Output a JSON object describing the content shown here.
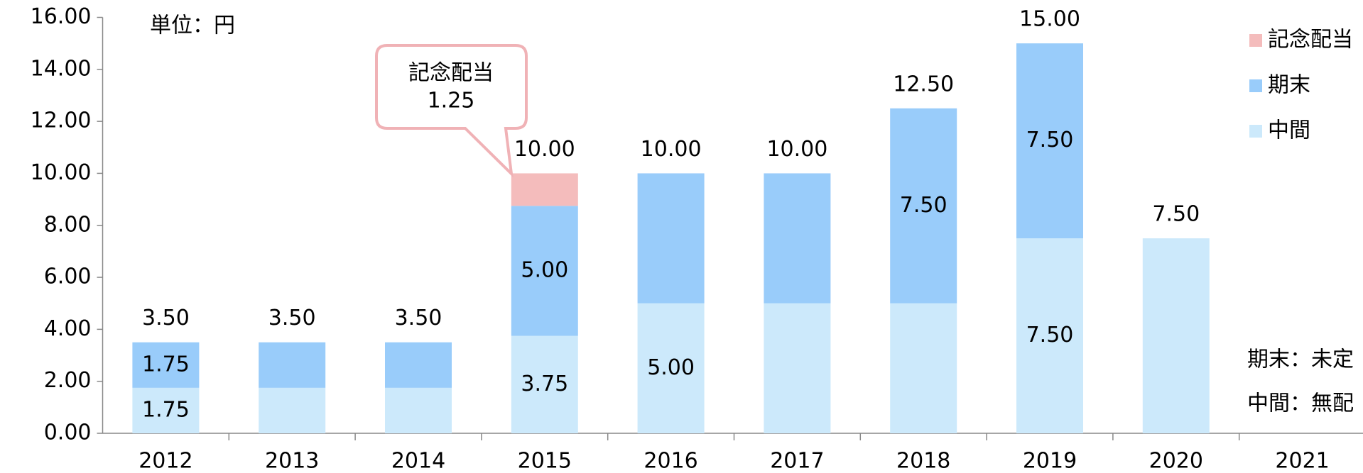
{
  "chart_data": {
    "type": "bar",
    "stacked": true,
    "subtitle": "単位：円",
    "categories": [
      "2012",
      "2013",
      "2014",
      "2015",
      "2016",
      "2017",
      "2018",
      "2019",
      "2020",
      "2021"
    ],
    "series": [
      {
        "name": "中間",
        "color": "#cce9fb",
        "values": [
          1.75,
          1.75,
          1.75,
          3.75,
          5,
          5,
          5,
          7.5,
          7.5,
          null
        ],
        "value_labels": [
          "1.75",
          null,
          null,
          "3.75",
          "5.00",
          null,
          null,
          "7.50",
          null,
          null
        ]
      },
      {
        "name": "期末",
        "color": "#99ccfa",
        "values": [
          1.75,
          1.75,
          1.75,
          5,
          5,
          5,
          7.5,
          7.5,
          null,
          null
        ],
        "value_labels": [
          "1.75",
          null,
          null,
          "5.00",
          null,
          null,
          "7.50",
          "7.50",
          null,
          null
        ]
      },
      {
        "name": "記念配当",
        "color": "#f4bcbc",
        "values": [
          null,
          null,
          null,
          1.25,
          null,
          null,
          null,
          null,
          null,
          null
        ],
        "value_labels": [
          null,
          null,
          null,
          null,
          null,
          null,
          null,
          null,
          null,
          null
        ]
      }
    ],
    "totals": [
      3.5,
      3.5,
      3.5,
      10,
      10,
      10,
      12.5,
      15,
      7.5,
      null
    ],
    "total_labels": [
      "3.50",
      "3.50",
      "3.50",
      "10.00",
      "10.00",
      "10.00",
      "12.50",
      "15.00",
      "7.50",
      null
    ],
    "annotation": [
      "記念配当",
      "1.25"
    ],
    "notes": [
      "期末：未定",
      "中間：無配"
    ],
    "ylim": [
      0,
      16
    ],
    "yticks": [
      {
        "value": 0,
        "label": "0.00"
      },
      {
        "value": 2,
        "label": "2.00"
      },
      {
        "value": 4,
        "label": "4.00"
      },
      {
        "value": 6,
        "label": "6.00"
      },
      {
        "value": 8,
        "label": "8.00"
      },
      {
        "value": 10,
        "label": "10.00"
      },
      {
        "value": 12,
        "label": "12.00"
      },
      {
        "value": 14,
        "label": "14.00"
      },
      {
        "value": 16,
        "label": "16.00"
      }
    ],
    "legend": "right"
  }
}
